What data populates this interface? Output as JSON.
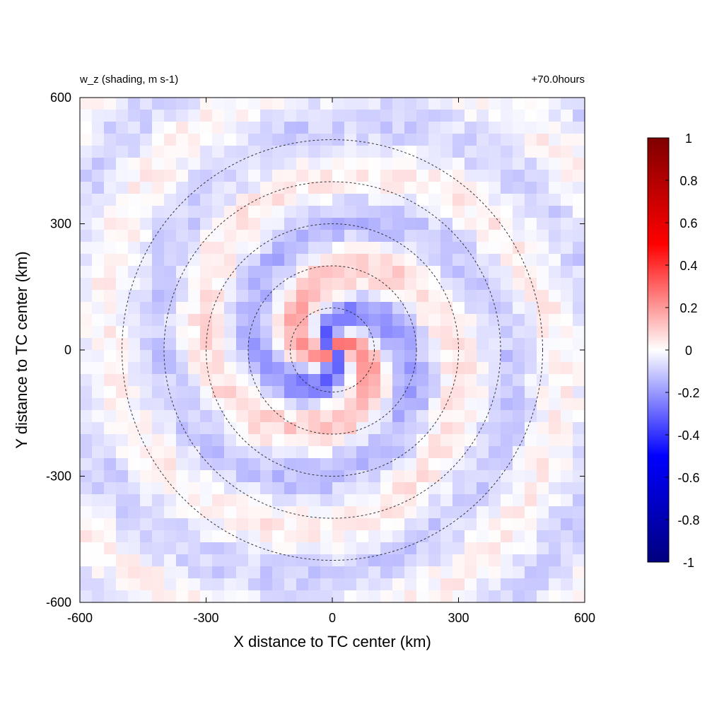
{
  "chart_data": {
    "type": "heatmap",
    "title_left": "w_z (shading, m s-1)",
    "title_right": "+70.0hours",
    "xlabel": "X distance to TC center (km)",
    "ylabel": "Y distance to TC center (km)",
    "xlim": [
      -600,
      600
    ],
    "ylim": [
      -600,
      600
    ],
    "x_ticks": [
      -600,
      -300,
      0,
      300,
      600
    ],
    "y_ticks": [
      -600,
      -300,
      0,
      300,
      600
    ],
    "x_tick_labels": [
      "-600",
      "-300",
      "0",
      "300",
      "600"
    ],
    "y_tick_labels": [
      "-600",
      "-300",
      "0",
      "300",
      "600"
    ],
    "range_circles_km": [
      100,
      200,
      300,
      400,
      500
    ],
    "colorbar": {
      "min": -1,
      "max": 1,
      "ticks": [
        1,
        0.8,
        0.6,
        0.4,
        0.2,
        0,
        -0.2,
        -0.4,
        -0.6,
        -0.8,
        -1
      ],
      "tick_labels": [
        "1",
        "0.8",
        "0.6",
        "0.4",
        "0.2",
        "0",
        "-0.2",
        "-0.4",
        "-0.6",
        "-0.8",
        "-1"
      ],
      "colors": [
        "#00007f",
        "#0000ff",
        "#ffffff",
        "#ff0000",
        "#7f0000"
      ]
    },
    "grid": false,
    "legend": "right"
  }
}
